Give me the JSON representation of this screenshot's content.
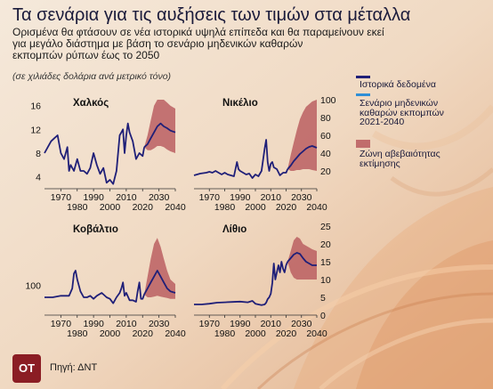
{
  "header": {
    "title": "Τα σενάρια για τις αυξήσεις των τιμών στα μέταλλα",
    "subtitle_lines": [
      "Ορισμένα θα φτάσουν σε νέα ιστορικά υψηλά επίπεδα και θα παραμείνουν εκεί",
      "για μεγάλο διάστημα με βάση το σενάριο μηδενικών καθαρών",
      "εκπομπών ρύπων έως το 2050"
    ],
    "unit_note": "(σε χιλιάδες δολάρια ανά μετρικό τόνο)"
  },
  "legend": {
    "historical": "Ιστορικά δεδομένα",
    "scenario_lines": [
      "Σενάριο μηδενικών",
      "καθαρών εκπομπών",
      "2021-2040"
    ],
    "band_lines": [
      "Ζώνη αβεβαιότητας",
      "εκτίμησης"
    ]
  },
  "footer": {
    "logo": "ΟΤ",
    "source": "Πηγή: ΔΝΤ"
  },
  "colors": {
    "historical": "#1f1f78",
    "scenario": "#2f8fd6",
    "band": "#b85a5e"
  },
  "chart_data": [
    {
      "type": "line",
      "title": "Χαλκός",
      "x_ticks": [
        1970,
        1990,
        2010,
        2030
      ],
      "x_ticks_second_row": [
        1980,
        2000,
        2020,
        2040
      ],
      "y_ticks": [
        4,
        8,
        12,
        16
      ],
      "y_axis_side": "left",
      "xlim": [
        1960,
        2040
      ],
      "ylim": [
        2,
        17
      ],
      "historical": {
        "x": [
          1960,
          1962,
          1964,
          1966,
          1968,
          1970,
          1972,
          1974,
          1975,
          1976,
          1978,
          1980,
          1982,
          1984,
          1986,
          1988,
          1990,
          1992,
          1994,
          1996,
          1998,
          2000,
          2002,
          2004,
          2006,
          2007,
          2008,
          2009,
          2010,
          2011,
          2012,
          2014,
          2016,
          2018,
          2020,
          2021
        ],
        "y": [
          8,
          9,
          10,
          10.5,
          11,
          8,
          7,
          9,
          5,
          6,
          5,
          7,
          5,
          5,
          4.5,
          5.5,
          8,
          6,
          4.5,
          5.5,
          3,
          3.5,
          2.8,
          5,
          11,
          11.5,
          12,
          8,
          11,
          13,
          11.5,
          10,
          7,
          8,
          7.5,
          9
        ]
      },
      "scenario": {
        "x": [
          2021,
          2023,
          2025,
          2027,
          2029,
          2031,
          2033,
          2035,
          2037,
          2040
        ],
        "y": [
          9,
          9.5,
          10.5,
          11.5,
          12.5,
          13,
          12.5,
          12.2,
          11.8,
          11.5
        ]
      },
      "band_upper": {
        "x": [
          2021,
          2023,
          2025,
          2027,
          2029,
          2031,
          2033,
          2035,
          2037,
          2040
        ],
        "y": [
          9,
          11,
          13.5,
          16,
          17,
          17,
          17,
          16.5,
          16,
          15.5
        ]
      },
      "band_lower": {
        "x": [
          2021,
          2023,
          2025,
          2027,
          2029,
          2031,
          2033,
          2035,
          2037,
          2040
        ],
        "y": [
          9,
          8.5,
          8.5,
          8.8,
          9.2,
          9.2,
          9,
          8.6,
          8.3,
          8
        ]
      }
    },
    {
      "type": "line",
      "title": "Νικέλιο",
      "x_ticks": [
        1970,
        1990,
        2010,
        2030
      ],
      "x_ticks_second_row": [
        1980,
        2000,
        2020,
        2040
      ],
      "y_ticks": [
        20,
        40,
        60,
        80,
        100
      ],
      "y_axis_side": "right",
      "xlim": [
        1960,
        2040
      ],
      "ylim": [
        0,
        100
      ],
      "historical": {
        "x": [
          1960,
          1964,
          1968,
          1970,
          1972,
          1974,
          1976,
          1978,
          1980,
          1982,
          1984,
          1986,
          1988,
          1989,
          1990,
          1992,
          1994,
          1996,
          1998,
          2000,
          2002,
          2004,
          2006,
          2007,
          2008,
          2009,
          2010,
          2011,
          2012,
          2014,
          2016,
          2018,
          2020,
          2021
        ],
        "y": [
          15,
          17,
          18,
          19,
          18,
          20,
          18,
          16,
          18,
          16,
          15,
          14,
          30,
          22,
          20,
          18,
          16,
          17,
          12,
          16,
          14,
          20,
          45,
          55,
          30,
          20,
          28,
          30,
          24,
          22,
          15,
          18,
          18,
          22
        ]
      },
      "scenario": {
        "x": [
          2021,
          2023,
          2025,
          2027,
          2029,
          2031,
          2033,
          2035,
          2037,
          2040
        ],
        "y": [
          22,
          26,
          31,
          35,
          39,
          42,
          45,
          47,
          48,
          46
        ]
      },
      "band_upper": {
        "x": [
          2021,
          2023,
          2025,
          2027,
          2029,
          2031,
          2033,
          2035,
          2037,
          2040
        ],
        "y": [
          22,
          38,
          52,
          66,
          78,
          86,
          92,
          95,
          98,
          100
        ]
      },
      "band_lower": {
        "x": [
          2021,
          2023,
          2025,
          2027,
          2029,
          2031,
          2033,
          2035,
          2037,
          2040
        ],
        "y": [
          22,
          20,
          20,
          21,
          21,
          22,
          22,
          22,
          21,
          20
        ]
      }
    },
    {
      "type": "line",
      "title": "Κοβάλτιο",
      "x_ticks": [
        1970,
        1990,
        2010,
        2030
      ],
      "x_ticks_second_row": [
        1980,
        2000,
        2020,
        2040
      ],
      "y_ticks": [
        100
      ],
      "y_axis_side": "left",
      "xlim": [
        1960,
        2040
      ],
      "ylim": [
        0,
        300
      ],
      "historical": {
        "x": [
          1960,
          1965,
          1970,
          1975,
          1977,
          1978,
          1979,
          1980,
          1982,
          1984,
          1986,
          1988,
          1990,
          1992,
          1995,
          1998,
          2000,
          2002,
          2004,
          2006,
          2007,
          2008,
          2009,
          2010,
          2012,
          2014,
          2016,
          2017,
          2018,
          2019,
          2020,
          2021
        ],
        "y": [
          60,
          60,
          65,
          65,
          90,
          140,
          150,
          120,
          80,
          60,
          60,
          65,
          55,
          65,
          75,
          60,
          55,
          40,
          60,
          75,
          90,
          110,
          65,
          75,
          50,
          50,
          45,
          80,
          110,
          55,
          55,
          70
        ]
      },
      "scenario": {
        "x": [
          2021,
          2023,
          2025,
          2027,
          2029,
          2031,
          2033,
          2035,
          2037,
          2040
        ],
        "y": [
          70,
          90,
          110,
          130,
          150,
          130,
          110,
          90,
          80,
          75
        ]
      },
      "band_upper": {
        "x": [
          2021,
          2023,
          2025,
          2027,
          2029,
          2031,
          2033,
          2035,
          2037,
          2040
        ],
        "y": [
          70,
          130,
          190,
          240,
          260,
          230,
          190,
          150,
          120,
          105
        ]
      },
      "band_lower": {
        "x": [
          2021,
          2023,
          2025,
          2027,
          2029,
          2031,
          2033,
          2035,
          2037,
          2040
        ],
        "y": [
          70,
          60,
          60,
          62,
          65,
          62,
          60,
          58,
          55,
          55
        ]
      }
    },
    {
      "type": "line",
      "title": "Λίθιο",
      "x_ticks": [
        1970,
        1990,
        2010,
        2030
      ],
      "x_ticks_second_row": [
        1980,
        2000,
        2020,
        2040
      ],
      "y_ticks": [
        0,
        5,
        10,
        15,
        20,
        25
      ],
      "y_axis_side": "right",
      "xlim": [
        1960,
        2040
      ],
      "ylim": [
        0,
        25
      ],
      "historical": {
        "x": [
          1960,
          1965,
          1970,
          1975,
          1980,
          1985,
          1990,
          1995,
          1998,
          2000,
          2002,
          2004,
          2006,
          2007,
          2008,
          2009,
          2010,
          2011,
          2012,
          2013,
          2014,
          2015,
          2016,
          2017,
          2018,
          2019,
          2020,
          2021
        ],
        "y": [
          3,
          3,
          3.2,
          3.5,
          3.6,
          3.7,
          3.8,
          3.6,
          4,
          3.2,
          3,
          2.8,
          3,
          3.5,
          4.5,
          5,
          6,
          9,
          14.5,
          10,
          12,
          14,
          12,
          15,
          13,
          12,
          14,
          15
        ]
      },
      "scenario": {
        "x": [
          2021,
          2023,
          2025,
          2027,
          2029,
          2031,
          2033,
          2035,
          2037,
          2040
        ],
        "y": [
          15,
          16,
          17,
          17.5,
          17.2,
          16,
          15,
          14.5,
          14,
          14
        ]
      },
      "band_upper": {
        "x": [
          2021,
          2023,
          2025,
          2027,
          2029,
          2031,
          2033,
          2035,
          2037,
          2040
        ],
        "y": [
          15,
          18,
          21,
          22,
          21.5,
          20,
          19.5,
          19,
          18.5,
          18
        ]
      },
      "band_lower": {
        "x": [
          2021,
          2023,
          2025,
          2027,
          2029,
          2031,
          2033,
          2035,
          2037,
          2040
        ],
        "y": [
          15,
          12,
          10.5,
          10,
          10,
          10,
          10,
          10,
          10,
          10
        ]
      }
    }
  ]
}
